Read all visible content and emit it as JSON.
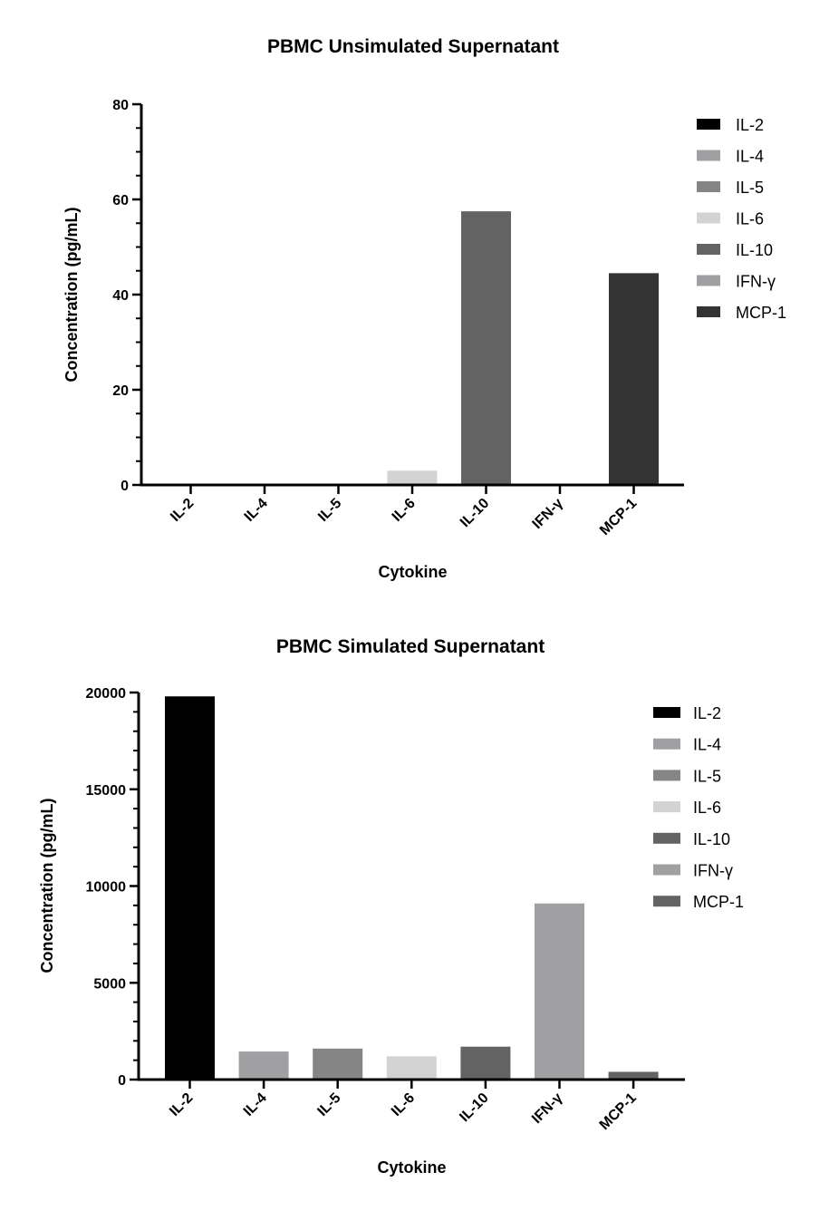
{
  "chart_data": [
    {
      "type": "bar",
      "title": "PBMC Unsimulated Supernatant",
      "xlabel": "Cytokine",
      "ylabel": "Concentration (pg/mL)",
      "ylim": [
        0,
        80
      ],
      "yticks": [
        0,
        20,
        40,
        60,
        80
      ],
      "categories": [
        "IL-2",
        "IL-4",
        "IL-5",
        "IL-6",
        "IL-10",
        "IFN-γ",
        "MCP-1"
      ],
      "values": [
        0,
        0,
        0,
        3,
        57.5,
        0,
        44.5
      ],
      "colors": [
        "#000000",
        "#a0a0a3",
        "#858585",
        "#d3d3d3",
        "#636363",
        "#a0a0a3",
        "#333333"
      ],
      "legend": [
        "IL-2",
        "IL-4",
        "IL-5",
        "IL-6",
        "IL-10",
        "IFN-γ",
        "MCP-1"
      ],
      "legend_position": "right",
      "grid": false
    },
    {
      "type": "bar",
      "title": "PBMC Simulated Supernatant",
      "xlabel": "Cytokine",
      "ylabel": "Concentration (pg/mL)",
      "ylim": [
        0,
        20000
      ],
      "yticks": [
        0,
        5000,
        10000,
        15000,
        20000
      ],
      "categories": [
        "IL-2",
        "IL-4",
        "IL-5",
        "IL-6",
        "IL-10",
        "IFN-γ",
        "MCP-1"
      ],
      "values": [
        19800,
        1450,
        1600,
        1200,
        1700,
        9100,
        400
      ],
      "colors": [
        "#000000",
        "#a0a0a3",
        "#858585",
        "#d3d3d3",
        "#636363",
        "#a0a0a3",
        "#636363"
      ],
      "legend": [
        "IL-2",
        "IL-4",
        "IL-5",
        "IL-6",
        "IL-10",
        "IFN-γ",
        "MCP-1"
      ],
      "legend_position": "right",
      "grid": false
    }
  ]
}
